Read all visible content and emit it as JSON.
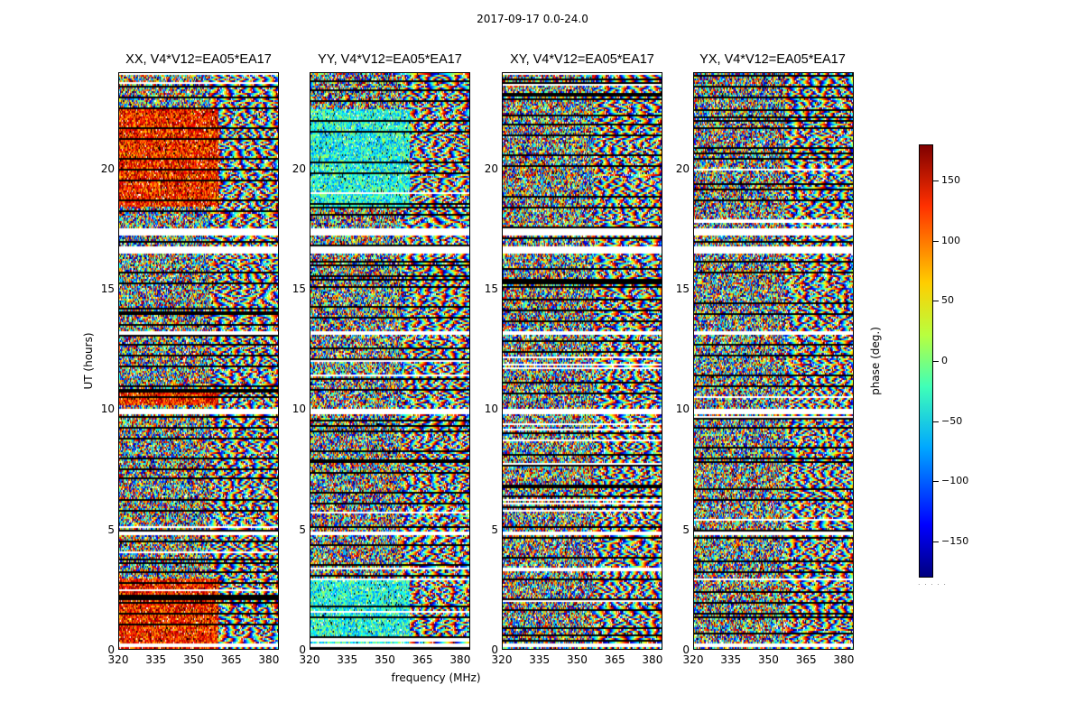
{
  "chart_data": {
    "type": "heatmap",
    "title": "2017-09-17 0.0-24.0",
    "xlabel": "frequency (MHz)",
    "ylabel": "UT (hours)",
    "x_ticks": [
      320,
      335,
      350,
      365,
      380
    ],
    "xlim": [
      320,
      384
    ],
    "y_ticks": [
      0,
      5,
      10,
      15,
      20
    ],
    "ylim": [
      0,
      24
    ],
    "panels": [
      {
        "title": "XX, V4*V12=EA05*EA17",
        "name": "XX"
      },
      {
        "title": "YY, V4*V12=EA05*EA17",
        "name": "YY"
      },
      {
        "title": "XY, V4*V12=EA05*EA17",
        "name": "XY"
      },
      {
        "title": "YX, V4*V12=EA05*EA17",
        "name": "YX"
      }
    ],
    "colorbar": {
      "label": "phase (deg.)",
      "ticks": [
        150,
        100,
        50,
        0,
        -50,
        -100,
        -150
      ],
      "tick_labels": [
        "150",
        "100",
        "50",
        "0",
        "−50",
        "−100",
        "−150"
      ],
      "range": [
        -180,
        180
      ],
      "colormap": "jet"
    },
    "white_gaps_ut": [
      [
        17.25,
        17.6
      ],
      [
        16.55,
        16.85
      ],
      [
        9.8,
        10.05
      ],
      [
        13.15,
        13.3
      ],
      [
        0.15,
        0.3
      ],
      [
        4.75,
        4.9
      ]
    ]
  }
}
